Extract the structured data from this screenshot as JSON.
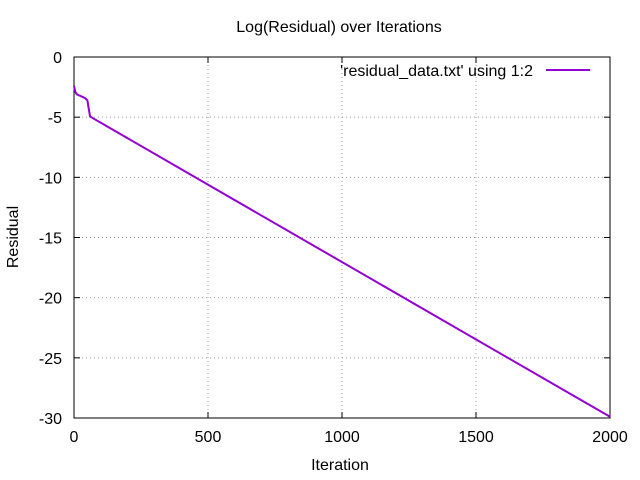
{
  "chart_data": {
    "type": "line",
    "title": "Log(Residual) over Iterations",
    "xlabel": "Iteration",
    "ylabel": "Residual",
    "xlim": [
      0,
      2000
    ],
    "ylim": [
      -30,
      0
    ],
    "xticks": [
      0,
      500,
      1000,
      1500,
      2000
    ],
    "yticks": [
      0,
      -5,
      -10,
      -15,
      -20,
      -25,
      -30
    ],
    "grid": true,
    "legend_position": "top-right",
    "series": [
      {
        "name": "'residual_data.txt' using 1:2",
        "color": "#9400d3",
        "x": [
          0,
          5,
          10,
          20,
          30,
          40,
          45,
          50,
          55,
          60,
          2000
        ],
        "y": [
          -2.4,
          -2.9,
          -3.1,
          -3.2,
          -3.3,
          -3.4,
          -3.5,
          -3.6,
          -4.3,
          -4.95,
          -29.9
        ]
      }
    ]
  }
}
